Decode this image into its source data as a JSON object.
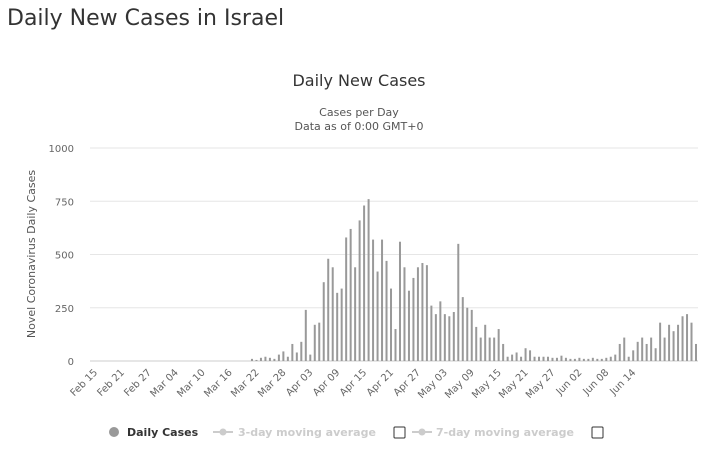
{
  "page": {
    "title": "Daily New Cases in Israel"
  },
  "chart_data": {
    "type": "bar",
    "title": "Daily New Cases",
    "subtitle_lines": [
      "Cases per Day",
      "Data as of 0:00 GMT+0"
    ],
    "ylabel": "Novel Coronavirus Daily Cases",
    "xlabel": "",
    "ylim": [
      0,
      1000
    ],
    "yticks": [
      0,
      250,
      500,
      750,
      1000
    ],
    "grid": true,
    "x_tick_labels": [
      "Feb 15",
      "Feb 21",
      "Feb 27",
      "Mar 04",
      "Mar 10",
      "Mar 16",
      "Mar 22",
      "Mar 28",
      "Apr 03",
      "Apr 09",
      "Apr 15",
      "Apr 21",
      "Apr 27",
      "May 03",
      "May 09",
      "May 15",
      "May 21",
      "May 27",
      "Jun 02",
      "Jun 08",
      "Jun 14"
    ],
    "x_tick_every": 6,
    "start_date": "Feb 15",
    "end_date": "Jun 14",
    "series": [
      {
        "name": "Daily Cases",
        "color": "#999999",
        "values": [
          0,
          0,
          0,
          0,
          0,
          0,
          0,
          0,
          0,
          0,
          0,
          0,
          0,
          0,
          0,
          0,
          0,
          0,
          0,
          0,
          0,
          0,
          0,
          0,
          0,
          0,
          0,
          0,
          0,
          0,
          0,
          0,
          0,
          0,
          0,
          10,
          5,
          15,
          20,
          15,
          10,
          30,
          45,
          20,
          80,
          40,
          90,
          240,
          30,
          170,
          180,
          370,
          480,
          440,
          320,
          340,
          580,
          620,
          440,
          660,
          730,
          760,
          570,
          420,
          570,
          470,
          340,
          150,
          560,
          440,
          330,
          390,
          440,
          460,
          450,
          260,
          220,
          280,
          220,
          210,
          230,
          550,
          300,
          250,
          240,
          160,
          110,
          170,
          110,
          110,
          150,
          80,
          20,
          30,
          40,
          20,
          60,
          50,
          20,
          20,
          20,
          20,
          15,
          15,
          25,
          15,
          10,
          10,
          15,
          10,
          10,
          15,
          10,
          10,
          15,
          20,
          30,
          80,
          110,
          20,
          50,
          90,
          110,
          80,
          110,
          60,
          180,
          110,
          170,
          140,
          170,
          210,
          220,
          180,
          80
        ]
      }
    ],
    "legend": [
      {
        "label": "Daily Cases",
        "active": true,
        "marker": "circle",
        "color": "#999999"
      },
      {
        "label": "3-day moving average",
        "active": false,
        "marker": "line-dot",
        "color": "#cccccc",
        "checkbox": true
      },
      {
        "label": "7-day moving average",
        "active": false,
        "marker": "line-dot",
        "color": "#cccccc",
        "checkbox": true
      }
    ]
  }
}
